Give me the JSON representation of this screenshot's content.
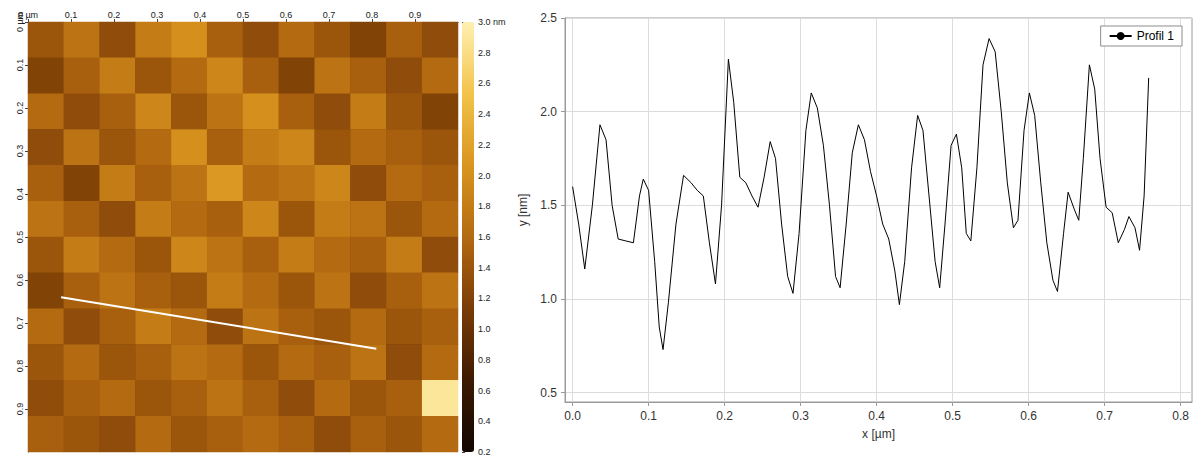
{
  "chart_data": [
    {
      "type": "heatmap",
      "xlim": [
        0,
        1
      ],
      "ylim": [
        0,
        1
      ],
      "xticks": [
        {
          "value": 0,
          "label": "0 µm"
        },
        0.1,
        0.2,
        0.3,
        0.4,
        0.5,
        0.6,
        0.7,
        0.8,
        0.9
      ],
      "yticks": [
        {
          "value": 0,
          "label": "0 µm"
        },
        0.1,
        0.2,
        0.3,
        0.4,
        0.5,
        0.6,
        0.7,
        0.8,
        0.9
      ],
      "cells": [
        [
          1.4,
          1.7,
          1.3,
          1.8,
          2.0,
          1.5,
          1.3,
          1.6,
          1.4,
          1.2,
          1.5,
          1.3
        ],
        [
          1.2,
          1.5,
          1.8,
          1.4,
          1.6,
          1.9,
          1.5,
          1.2,
          1.7,
          1.5,
          1.3,
          1.6
        ],
        [
          1.6,
          1.3,
          1.5,
          1.9,
          1.4,
          1.7,
          2.0,
          1.5,
          1.3,
          1.8,
          1.4,
          1.2
        ],
        [
          1.3,
          1.7,
          1.4,
          1.6,
          2.0,
          1.5,
          1.8,
          1.9,
          1.4,
          1.6,
          1.5,
          1.4
        ],
        [
          1.5,
          1.2,
          1.8,
          1.5,
          1.7,
          2.1,
          1.6,
          1.7,
          1.9,
          1.3,
          1.6,
          1.5
        ],
        [
          1.7,
          1.5,
          1.3,
          1.8,
          1.6,
          1.5,
          1.9,
          1.4,
          1.8,
          1.7,
          1.4,
          1.6
        ],
        [
          1.4,
          1.8,
          1.6,
          1.4,
          1.9,
          1.7,
          1.5,
          1.8,
          1.6,
          1.5,
          1.8,
          1.3
        ],
        [
          1.2,
          1.5,
          1.7,
          1.5,
          1.4,
          1.8,
          1.6,
          1.4,
          1.7,
          1.3,
          1.5,
          1.7
        ],
        [
          1.6,
          1.3,
          1.5,
          1.8,
          1.6,
          1.3,
          1.7,
          1.5,
          1.4,
          1.6,
          1.4,
          1.5
        ],
        [
          1.4,
          1.6,
          1.4,
          1.5,
          1.7,
          1.6,
          1.4,
          1.6,
          1.5,
          1.7,
          1.3,
          1.6
        ],
        [
          1.3,
          1.5,
          1.6,
          1.4,
          1.5,
          1.7,
          1.5,
          1.3,
          1.6,
          1.4,
          1.5,
          2.9
        ],
        [
          1.5,
          1.4,
          1.3,
          1.6,
          1.4,
          1.5,
          1.6,
          1.5,
          1.3,
          1.5,
          1.4,
          1.6
        ]
      ],
      "color_range": [
        0.2,
        3.0
      ],
      "color_ticks": [
        0.2,
        0.4,
        0.6,
        0.8,
        {
          "value": 1,
          "label": "1.0"
        },
        1.2,
        1.4,
        1.6,
        1.8,
        {
          "value": 2,
          "label": "2.0"
        },
        2.2,
        2.4,
        2.6,
        2.8,
        {
          "value": 3,
          "label": "3.0 nm"
        }
      ],
      "profile_line": {
        "x": [
          0.077,
          0.81
        ],
        "y": [
          0.64,
          0.76
        ],
        "color": "#ffffff"
      }
    },
    {
      "type": "line",
      "xlabel": "x [µm]",
      "ylabel": "y [nm]",
      "xlim": [
        -0.01,
        0.815
      ],
      "ylim": [
        0.45,
        2.5
      ],
      "xticks": [
        {
          "value": 0,
          "label": "0.0"
        },
        0.1,
        0.2,
        0.3,
        0.4,
        0.5,
        0.6,
        0.7,
        0.8
      ],
      "yticks": [
        0.5,
        {
          "value": 1,
          "label": "1.0"
        },
        1.5,
        {
          "value": 2,
          "label": "2.0"
        },
        2.5
      ],
      "grid": true,
      "legend": "upper right",
      "x": [
        0.0,
        0.008,
        0.016,
        0.026,
        0.036,
        0.044,
        0.052,
        0.06,
        0.07,
        0.08,
        0.088,
        0.093,
        0.1,
        0.108,
        0.114,
        0.119,
        0.126,
        0.136,
        0.146,
        0.156,
        0.164,
        0.172,
        0.18,
        0.188,
        0.196,
        0.205,
        0.212,
        0.22,
        0.228,
        0.236,
        0.244,
        0.252,
        0.26,
        0.267,
        0.275,
        0.283,
        0.29,
        0.298,
        0.307,
        0.314,
        0.322,
        0.33,
        0.338,
        0.346,
        0.352,
        0.36,
        0.368,
        0.376,
        0.384,
        0.392,
        0.4,
        0.408,
        0.416,
        0.424,
        0.43,
        0.437,
        0.446,
        0.454,
        0.461,
        0.469,
        0.477,
        0.483,
        0.49,
        0.498,
        0.505,
        0.512,
        0.518,
        0.524,
        0.532,
        0.54,
        0.548,
        0.556,
        0.564,
        0.572,
        0.58,
        0.586,
        0.594,
        0.601,
        0.608,
        0.616,
        0.624,
        0.632,
        0.638,
        0.646,
        0.652,
        0.66,
        0.666,
        0.672,
        0.68,
        0.687,
        0.694,
        0.702,
        0.71,
        0.718,
        0.726,
        0.732,
        0.74,
        0.746,
        0.752,
        0.758
      ],
      "series": [
        {
          "name": "Profil 1",
          "color": "#000000",
          "values": [
            1.6,
            1.4,
            1.16,
            1.5,
            1.93,
            1.85,
            1.5,
            1.32,
            1.31,
            1.3,
            1.55,
            1.64,
            1.58,
            1.2,
            0.85,
            0.73,
            0.98,
            1.4,
            1.66,
            1.62,
            1.58,
            1.55,
            1.3,
            1.08,
            1.5,
            2.28,
            2.05,
            1.65,
            1.62,
            1.55,
            1.49,
            1.65,
            1.84,
            1.75,
            1.4,
            1.12,
            1.03,
            1.35,
            1.9,
            2.1,
            2.02,
            1.82,
            1.5,
            1.12,
            1.06,
            1.4,
            1.78,
            1.93,
            1.85,
            1.68,
            1.55,
            1.4,
            1.32,
            1.15,
            0.97,
            1.2,
            1.7,
            1.98,
            1.9,
            1.55,
            1.2,
            1.06,
            1.4,
            1.82,
            1.88,
            1.7,
            1.35,
            1.31,
            1.7,
            2.25,
            2.39,
            2.32,
            2.0,
            1.62,
            1.38,
            1.42,
            1.9,
            2.1,
            1.98,
            1.62,
            1.3,
            1.1,
            1.04,
            1.35,
            1.57,
            1.48,
            1.42,
            1.75,
            2.25,
            2.12,
            1.75,
            1.49,
            1.46,
            1.3,
            1.37,
            1.44,
            1.38,
            1.26,
            1.55,
            2.18
          ]
        }
      ]
    }
  ]
}
